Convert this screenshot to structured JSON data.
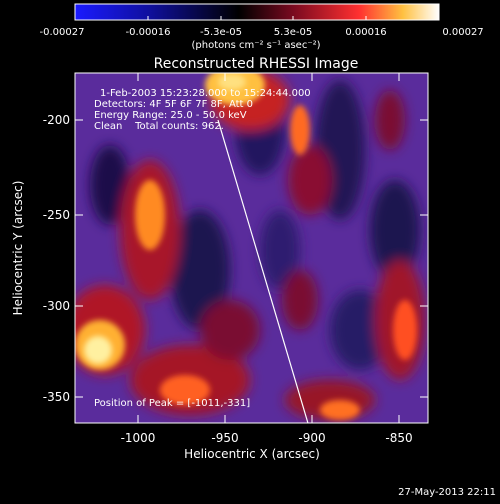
{
  "colorbar": {
    "ticks": [
      "-0.00027",
      "-0.00016",
      "-5.3e-05",
      "5.3e-05",
      "0.00016",
      "0.00027"
    ],
    "unit_label": "(photons cm⁻² s⁻¹ asec⁻²)",
    "stops": [
      "#1a1aff",
      "#000000",
      "#7a0a20",
      "#ff3030",
      "#ffd060",
      "#ffffff"
    ]
  },
  "plot": {
    "title": "Reconstructed RHESSI Image",
    "x_axis": {
      "label": "Heliocentric X (arcsec)",
      "ticks": [
        "-1000",
        "-950",
        "-900",
        "-850"
      ],
      "range": [
        -1035,
        -830
      ]
    },
    "y_axis": {
      "label": "Heliocentric Y (arcsec)",
      "ticks": [
        "-200",
        "-250",
        "-300",
        "-350"
      ],
      "range": [
        -370,
        -175
      ]
    },
    "info_lines": [
      "1-Feb-2003 15:23:28.000 to 15:24:44.000",
      "Detectors: 4F 5F 6F 7F 8F, Att 0",
      "Energy Range: 25.0 - 50.0 keV",
      "Clean    Total counts: 962."
    ],
    "peak_label": "Position of Peak = [-1011,-331]"
  },
  "timestamp": "27-May-2013 22:11"
}
